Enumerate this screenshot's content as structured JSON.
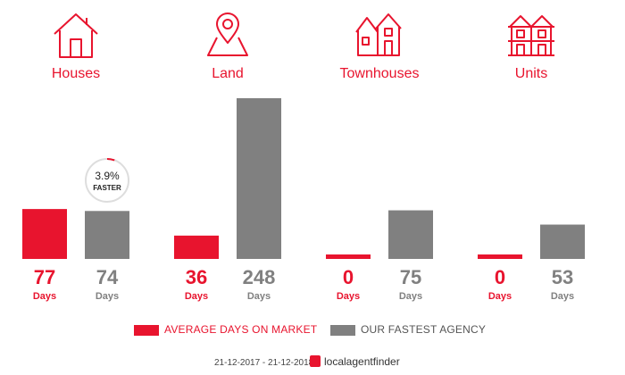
{
  "categories": [
    {
      "name": "Houses",
      "icon": "house-icon"
    },
    {
      "name": "Land",
      "icon": "map-pin-icon"
    },
    {
      "name": "Townhouses",
      "icon": "townhouses-icon"
    },
    {
      "name": "Units",
      "icon": "units-icon"
    }
  ],
  "chart_data": {
    "type": "bar",
    "categories": [
      "Houses",
      "Land",
      "Townhouses",
      "Units"
    ],
    "series": [
      {
        "name": "AVERAGE DAYS ON MARKET",
        "values": [
          77,
          36,
          0,
          0
        ],
        "color": "#e8142e"
      },
      {
        "name": "OUR FASTEST AGENCY",
        "values": [
          74,
          248,
          75,
          53
        ],
        "color": "#808080"
      }
    ],
    "unit_label": "Days",
    "value_labels": {
      "average": [
        "77",
        "36",
        "0",
        "0"
      ],
      "fastest": [
        "74",
        "248",
        "75",
        "53"
      ]
    },
    "callout": {
      "category": "Houses",
      "percent": "3.9%",
      "label": "FASTER"
    },
    "ylim": [
      0,
      248
    ],
    "legend": [
      {
        "label": "AVERAGE DAYS ON MARKET",
        "color": "#e8142e"
      },
      {
        "label": "OUR FASTEST AGENCY",
        "color": "#808080"
      }
    ]
  },
  "footer": {
    "date_range": "21-12-2017 - 21-12-2018",
    "brand": "localagentfinder"
  },
  "colors": {
    "accent": "#e8142e",
    "grey": "#808080"
  }
}
